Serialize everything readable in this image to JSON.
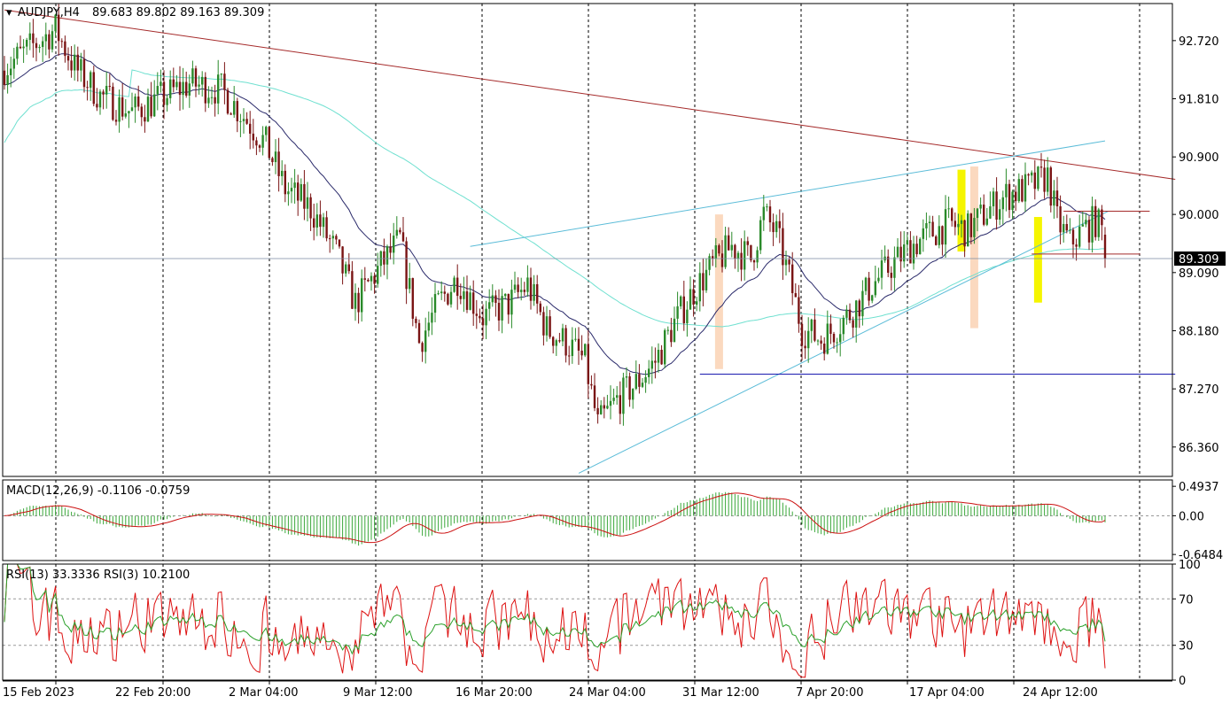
{
  "header": {
    "symbol": "AUDJPY,H4",
    "ohlc": "89.683 89.802 89.163 89.309"
  },
  "price_scale": [
    "92.720",
    "91.810",
    "90.900",
    "90.000",
    "89.090",
    "88.180",
    "87.270",
    "86.360"
  ],
  "current_price": "89.309",
  "macd": {
    "label": "MACD(12,26,9) -0.1106 -0.0759",
    "ticks": [
      "0.4937",
      "0.00",
      "-0.6484"
    ]
  },
  "rsi": {
    "label": "RSI(13) 33.3336  RSI(3) 10.2100",
    "ticks": [
      "100",
      "70",
      "30",
      "0"
    ]
  },
  "time_axis": [
    "15 Feb 2023",
    "22 Feb 20:00",
    "2 Mar 04:00",
    "9 Mar 12:00",
    "16 Mar 20:00",
    "24 Mar 04:00",
    "31 Mar 12:00",
    "7 Apr 20:00",
    "17 Apr 04:00",
    "24 Apr 12:00"
  ],
  "colors": {
    "bull": "#2a8a2a",
    "bear": "#7a1414",
    "ma_fast": "#2b2b6b",
    "ma_slow": "#6fe0d0",
    "trend_red": "#a52a2a",
    "trend_cyan": "#5bbcd8",
    "support": "#1a1ab0",
    "macd_hist": "#3aa83a",
    "macd_signal": "#cc1111",
    "rsi13": "#2aa02a",
    "rsi3": "#dd1111",
    "highlight_yellow": "#f5f500",
    "highlight_peach": "#fbd9bf"
  },
  "chart_data": {
    "type": "candlestick",
    "symbol": "AUDJPY",
    "timeframe": "H4",
    "ylim": [
      85.9,
      93.3
    ],
    "last": {
      "open": 89.683,
      "high": 89.802,
      "low": 89.163,
      "close": 89.309
    },
    "anchors": [
      {
        "i": 0,
        "p": 92.3
      },
      {
        "i": 8,
        "p": 92.6
      },
      {
        "i": 16,
        "p": 92.9
      },
      {
        "i": 22,
        "p": 92.3
      },
      {
        "i": 30,
        "p": 91.85
      },
      {
        "i": 40,
        "p": 91.6
      },
      {
        "i": 50,
        "p": 91.85
      },
      {
        "i": 58,
        "p": 92.05
      },
      {
        "i": 68,
        "p": 91.95
      },
      {
        "i": 74,
        "p": 91.6
      },
      {
        "i": 82,
        "p": 91.1
      },
      {
        "i": 88,
        "p": 90.4
      },
      {
        "i": 96,
        "p": 90.1
      },
      {
        "i": 104,
        "p": 89.4
      },
      {
        "i": 110,
        "p": 88.6
      },
      {
        "i": 118,
        "p": 89.2
      },
      {
        "i": 124,
        "p": 89.6
      },
      {
        "i": 130,
        "p": 88.0
      },
      {
        "i": 136,
        "p": 88.6
      },
      {
        "i": 142,
        "p": 89.0
      },
      {
        "i": 150,
        "p": 88.4
      },
      {
        "i": 158,
        "p": 88.6
      },
      {
        "i": 164,
        "p": 88.9
      },
      {
        "i": 170,
        "p": 88.2
      },
      {
        "i": 176,
        "p": 88.0
      },
      {
        "i": 182,
        "p": 87.7
      },
      {
        "i": 186,
        "p": 86.7
      },
      {
        "i": 192,
        "p": 87.1
      },
      {
        "i": 198,
        "p": 87.35
      },
      {
        "i": 204,
        "p": 87.7
      },
      {
        "i": 210,
        "p": 88.3
      },
      {
        "i": 216,
        "p": 88.8
      },
      {
        "i": 222,
        "p": 89.2
      },
      {
        "i": 228,
        "p": 89.5
      },
      {
        "i": 234,
        "p": 89.3
      },
      {
        "i": 238,
        "p": 90.0
      },
      {
        "i": 242,
        "p": 89.7
      },
      {
        "i": 246,
        "p": 89.0
      },
      {
        "i": 250,
        "p": 88.2
      },
      {
        "i": 256,
        "p": 88.05
      },
      {
        "i": 260,
        "p": 88.2
      },
      {
        "i": 266,
        "p": 88.5
      },
      {
        "i": 272,
        "p": 88.9
      },
      {
        "i": 278,
        "p": 89.2
      },
      {
        "i": 284,
        "p": 89.5
      },
      {
        "i": 290,
        "p": 89.7
      },
      {
        "i": 296,
        "p": 89.85
      },
      {
        "i": 302,
        "p": 89.75
      },
      {
        "i": 308,
        "p": 90.05
      },
      {
        "i": 314,
        "p": 90.3
      },
      {
        "i": 320,
        "p": 90.4
      },
      {
        "i": 324,
        "p": 90.5
      },
      {
        "i": 327,
        "p": 90.6
      },
      {
        "i": 330,
        "p": 89.9
      },
      {
        "i": 334,
        "p": 89.55
      },
      {
        "i": 338,
        "p": 89.75
      },
      {
        "i": 342,
        "p": 89.9
      },
      {
        "i": 345,
        "p": 89.68
      }
    ],
    "trendlines": [
      {
        "name": "resistance",
        "from": {
          "i": 0,
          "p": 93.2
        },
        "to": {
          "i": 367,
          "p": 90.55
        }
      },
      {
        "name": "upper-channel",
        "from": {
          "i": 146,
          "p": 89.5
        },
        "to": {
          "i": 345,
          "p": 91.15
        }
      },
      {
        "name": "lower-channel",
        "from": {
          "i": 180,
          "p": 85.95
        },
        "to": {
          "i": 346,
          "p": 90.05
        }
      },
      {
        "name": "support",
        "from": {
          "i": 218,
          "p": 87.5
        },
        "to": {
          "i": 367,
          "p": 87.5
        }
      },
      {
        "name": "range-top",
        "from": {
          "i": 332,
          "p": 90.05
        },
        "to": {
          "i": 359,
          "p": 90.05
        }
      },
      {
        "name": "range-bottom",
        "from": {
          "i": 322,
          "p": 89.38
        },
        "to": {
          "i": 356,
          "p": 89.38
        }
      }
    ],
    "highlights": [
      {
        "color": "peach",
        "i": 224,
        "from": 87.58,
        "to": 90.0
      },
      {
        "color": "peach",
        "i": 304,
        "from": 88.22,
        "to": 90.75
      },
      {
        "color": "yellow",
        "i": 300,
        "from": 89.42,
        "to": 90.7
      },
      {
        "color": "yellow",
        "i": 324,
        "from": 88.62,
        "to": 89.96
      }
    ],
    "macd": {
      "ylim": [
        -0.75,
        0.6
      ],
      "zero": 0.0,
      "main": -0.1106,
      "signal": -0.0759
    },
    "rsi": {
      "ylim": [
        0,
        100
      ],
      "levels": [
        30,
        70
      ],
      "rsi13": 33.3336,
      "rsi3": 10.21
    }
  }
}
